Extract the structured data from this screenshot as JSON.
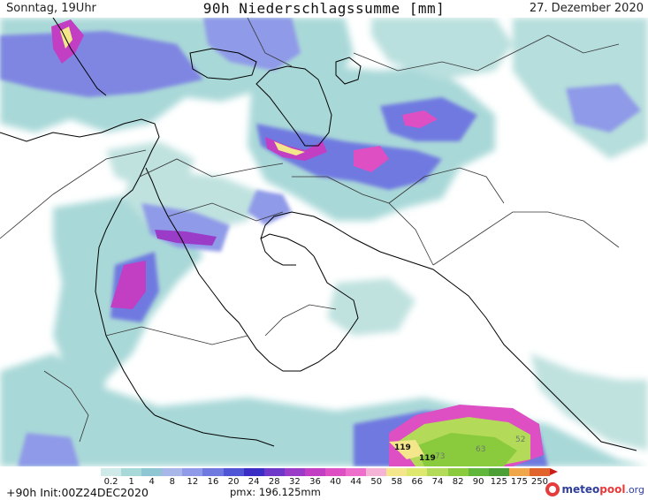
{
  "header": {
    "day_time": "Sonntag, 19Uhr",
    "title": "90h Niederschlagssumme [mm]",
    "date": "27. Dezember 2020"
  },
  "legend": {
    "ticks": [
      "0.2",
      "1",
      "4",
      "8",
      "12",
      "16",
      "20",
      "24",
      "28",
      "32",
      "36",
      "40",
      "44",
      "50",
      "58",
      "66",
      "74",
      "82",
      "90",
      "125",
      "175",
      "250"
    ],
    "colors": [
      "#cfeae8",
      "#a7d9d8",
      "#8fc6d3",
      "#a9b6e8",
      "#8f9ae8",
      "#6f79e0",
      "#4f55d4",
      "#3a2ec4",
      "#7038c8",
      "#9a3cc8",
      "#c23ec2",
      "#dd4fc2",
      "#ee6fcb",
      "#f5b3d6",
      "#f4e68a",
      "#dee86e",
      "#b3da58",
      "#8acb3e",
      "#5fb63a",
      "#4c9f34",
      "#f0a64a",
      "#e0642c"
    ]
  },
  "footer": {
    "forecast": "+90h Init:00Z24DEC2020",
    "pmx": "pmx: 196.125mm"
  },
  "logo": {
    "brand_a": "meteo",
    "brand_b": "pool",
    "brand_c": ".org"
  },
  "map_labels": [
    {
      "text": "119",
      "color": "#111111"
    },
    {
      "text": "119",
      "color": "#111111"
    },
    {
      "text": "73",
      "color": "#6a7a6a"
    },
    {
      "text": "63",
      "color": "#6a7a6a"
    },
    {
      "text": "52",
      "color": "#6a7a6a"
    }
  ],
  "colors": {
    "land": "#ffffff",
    "coast": "#000000",
    "border": "#333333"
  }
}
